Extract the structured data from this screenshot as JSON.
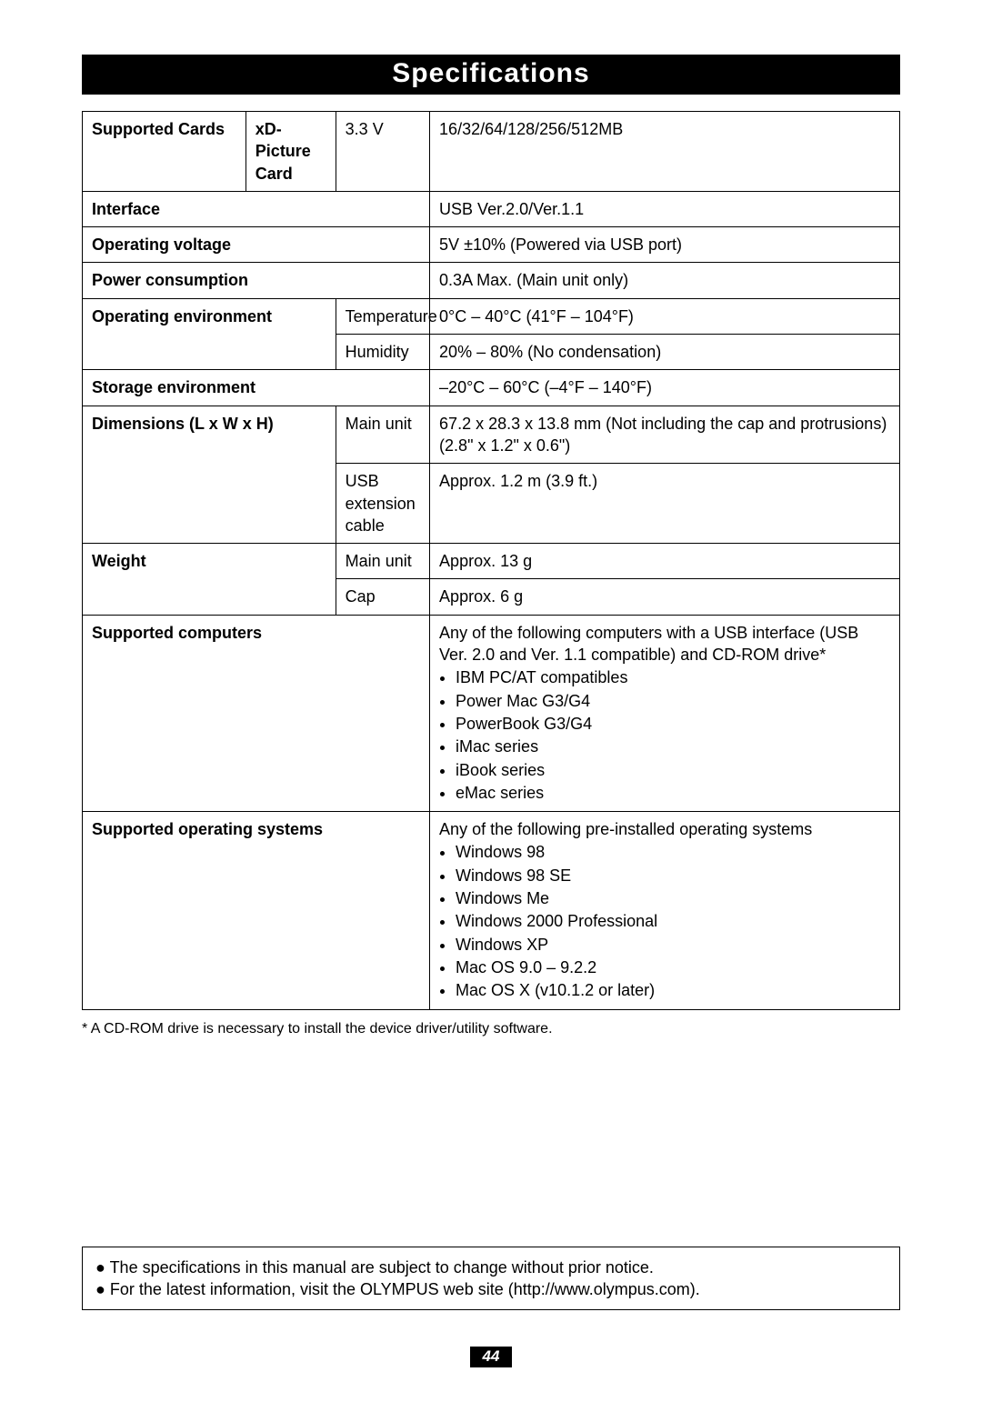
{
  "title": "Specifications",
  "page_number": "44",
  "footnote": "* A CD-ROM drive is necessary to install the device driver/utility software.",
  "notes": [
    "The specifications in this manual are subject to change without prior notice.",
    "For the latest information, visit the OLYMPUS web site (http://www.olympus.com)."
  ],
  "colors": {
    "header_bg": "#000000",
    "header_text": "#ffffff",
    "border": "#000000",
    "background": "#ffffff"
  },
  "rows": {
    "supported_cards_label": "Supported Cards",
    "supported_cards_type": "xD-Picture Card",
    "supported_cards_voltage": "3.3 V",
    "supported_cards_value": "16/32/64/128/256/512MB",
    "interface_label": "Interface",
    "interface_value": "USB Ver.2.0/Ver.1.1",
    "operating_voltage_label": "Operating voltage",
    "operating_voltage_value": "5V ±10% (Powered via USB port)",
    "power_consumption_label": "Power consumption",
    "power_consumption_value": "0.3A Max. (Main unit only)",
    "operating_env_label": "Operating environment",
    "operating_env_temp_label": "Temperature",
    "operating_env_temp_value": "0°C – 40°C (41°F – 104°F)",
    "operating_env_hum_label": "Humidity",
    "operating_env_hum_value": "20% – 80% (No condensation)",
    "storage_env_label": "Storage environment",
    "storage_env_value": "–20°C – 60°C (–4°F – 140°F)",
    "dimensions_label": "Dimensions (L x W x H)",
    "dimensions_main_label": "Main unit",
    "dimensions_main_value": "67.2 x 28.3 x 13.8 mm (Not including the cap and protrusions) (2.8\" x 1.2\" x 0.6\")",
    "dimensions_usb_label": "USB extension cable",
    "dimensions_usb_value": "Approx. 1.2 m (3.9 ft.)",
    "weight_label": "Weight",
    "weight_main_label": "Main unit",
    "weight_main_value": "Approx. 13 g",
    "weight_cap_label": "Cap",
    "weight_cap_value": "Approx. 6 g",
    "supported_computers_label": "Supported computers",
    "supported_computers_intro": "Any of the following computers with a USB interface (USB Ver. 2.0 and Ver. 1.1 compatible) and CD-ROM drive*",
    "supported_computers_items": {
      "0": "IBM PC/AT compatibles",
      "1": "Power Mac G3/G4",
      "2": "PowerBook G3/G4",
      "3": "iMac series",
      "4": "iBook series",
      "5": "eMac series"
    },
    "supported_os_label": "Supported operating systems",
    "supported_os_intro": "Any of the following pre-installed operating systems",
    "supported_os_items": {
      "0": "Windows 98",
      "1": "Windows 98 SE",
      "2": "Windows Me",
      "3": "Windows 2000 Professional",
      "4": "Windows XP",
      "5": "Mac OS 9.0 – 9.2.2",
      "6": "Mac OS X (v10.1.2 or later)"
    }
  }
}
